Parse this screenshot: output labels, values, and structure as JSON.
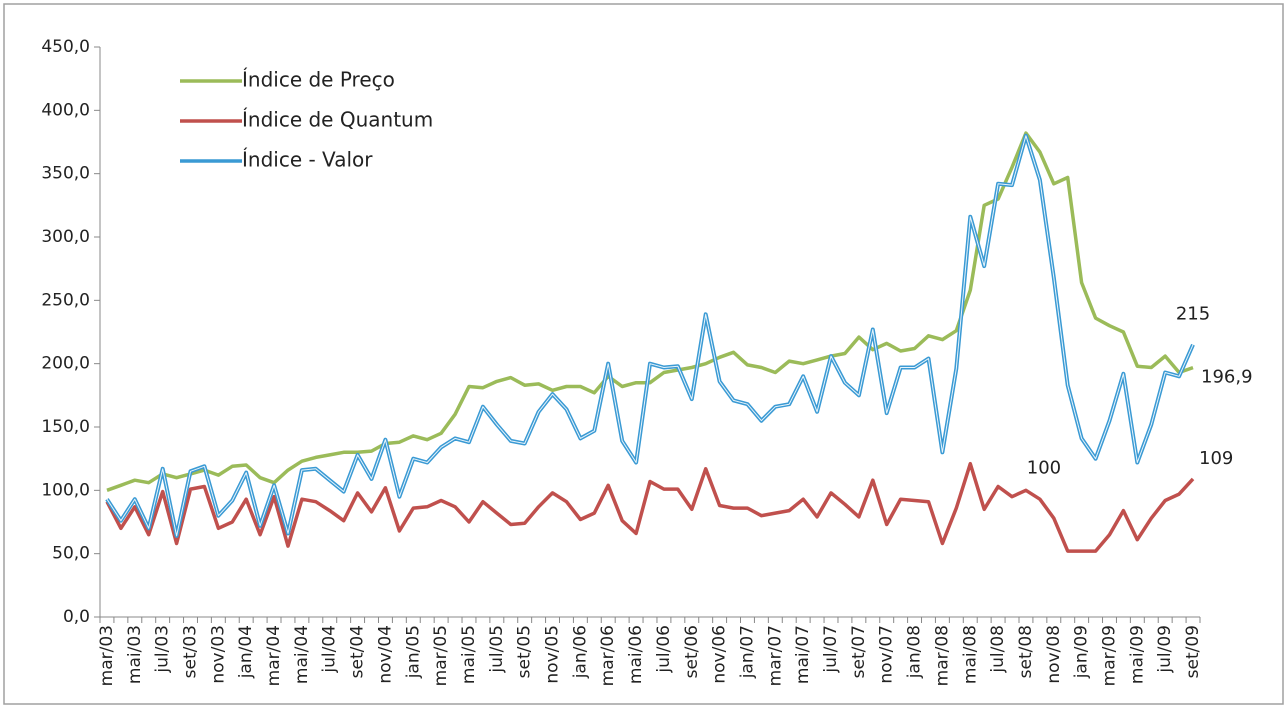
{
  "chart_data": {
    "type": "line",
    "categories": [
      "mar/03",
      null,
      "mai/03",
      null,
      "jul/03",
      null,
      "set/03",
      null,
      "nov/03",
      null,
      "jan/04",
      null,
      "mar/04",
      null,
      "mai/04",
      null,
      "jul/04",
      null,
      "set/04",
      null,
      "nov/04",
      null,
      "jan/05",
      null,
      "mar/05",
      null,
      "mai/05",
      null,
      "jul/05",
      null,
      "set/05",
      null,
      "nov/05",
      null,
      "jan/06",
      null,
      "mar/06",
      null,
      "mai/06",
      null,
      "jul/06",
      null,
      "set/06",
      null,
      "nov/06",
      null,
      "jan/07",
      null,
      "mar/07",
      null,
      "mai/07",
      null,
      "jul/07",
      null,
      "set/07",
      null,
      "nov/07",
      null,
      "jan/08",
      null,
      "mar/08",
      null,
      "mai/08",
      null,
      "jul/08",
      null,
      "set/08",
      null,
      "nov/08",
      null,
      "jan/09",
      null,
      "mar/09",
      null,
      "mai/09",
      null,
      "jul/09",
      null,
      "set/09"
    ],
    "series": [
      {
        "name": "Índice de Preço",
        "color": "#9bbb59",
        "values": [
          100,
          104,
          108,
          106,
          113,
          110,
          113,
          116,
          112,
          119,
          120,
          110,
          106,
          116,
          123,
          126,
          128,
          130,
          130,
          131,
          137,
          138,
          143,
          140,
          145,
          160,
          182,
          181,
          186,
          189,
          183,
          184,
          179,
          182,
          182,
          177,
          190,
          182,
          185,
          185,
          193,
          195,
          197,
          200,
          205,
          209,
          199,
          197,
          193,
          202,
          200,
          203,
          206,
          208,
          221,
          211,
          216,
          210,
          212,
          222,
          219,
          226,
          258,
          325,
          330,
          355,
          382,
          367,
          342,
          347,
          264,
          236,
          230,
          225,
          198,
          197,
          206,
          193,
          196.9
        ],
        "value_labels": {
          "78": "196,9"
        }
      },
      {
        "name": "Índice de Quantum",
        "color": "#c0504d",
        "values": [
          91,
          70,
          87,
          65,
          99,
          58,
          101,
          103,
          70,
          75,
          93,
          65,
          95,
          56,
          93,
          91,
          84,
          76,
          98,
          83,
          102,
          68,
          86,
          87,
          92,
          87,
          75,
          91,
          82,
          73,
          74,
          87,
          98,
          91,
          77,
          82,
          104,
          76,
          66,
          107,
          101,
          101,
          85,
          117,
          88,
          86,
          86,
          80,
          82,
          84,
          93,
          79,
          98,
          89,
          79,
          108,
          73,
          93,
          92,
          91,
          58,
          86,
          121,
          85,
          103,
          95,
          100,
          93,
          78,
          52,
          52,
          52,
          65,
          84,
          61,
          78,
          92,
          97,
          109
        ],
        "value_labels": {
          "66": "100",
          "78": "109"
        }
      },
      {
        "name": "Índice - Valor",
        "color": "#3a9ad4",
        "values": [
          93,
          76,
          93,
          70,
          117,
          64,
          115,
          119,
          80,
          92,
          114,
          72,
          104,
          66,
          116,
          117,
          108,
          99,
          128,
          109,
          140,
          95,
          125,
          122,
          134,
          141,
          138,
          166,
          152,
          139,
          137,
          162,
          176,
          164,
          141,
          147,
          200,
          139,
          122,
          200,
          197,
          198,
          172,
          239,
          186,
          171,
          168,
          155,
          166,
          168,
          190,
          162,
          206,
          185,
          175,
          227,
          161,
          197,
          197,
          204,
          130,
          196,
          316,
          277,
          342,
          341,
          380,
          345,
          268,
          183,
          141,
          125,
          155,
          192,
          122,
          152,
          193,
          190,
          215
        ],
        "value_labels": {
          "78": "215"
        }
      }
    ],
    "ylim": [
      0,
      450
    ],
    "yticks": [
      {
        "value": 0,
        "label": "0,0"
      },
      {
        "value": 50,
        "label": "50,0"
      },
      {
        "value": 100,
        "label": "100,0"
      },
      {
        "value": 150,
        "label": "150,0"
      },
      {
        "value": 200,
        "label": "200,0"
      },
      {
        "value": 250,
        "label": "250,0"
      },
      {
        "value": 300,
        "label": "300,0"
      },
      {
        "value": 350,
        "label": "350,0"
      },
      {
        "value": 400,
        "label": "400,0"
      },
      {
        "value": 450,
        "label": "450,0"
      }
    ],
    "grid": false,
    "legend": "top-left"
  }
}
